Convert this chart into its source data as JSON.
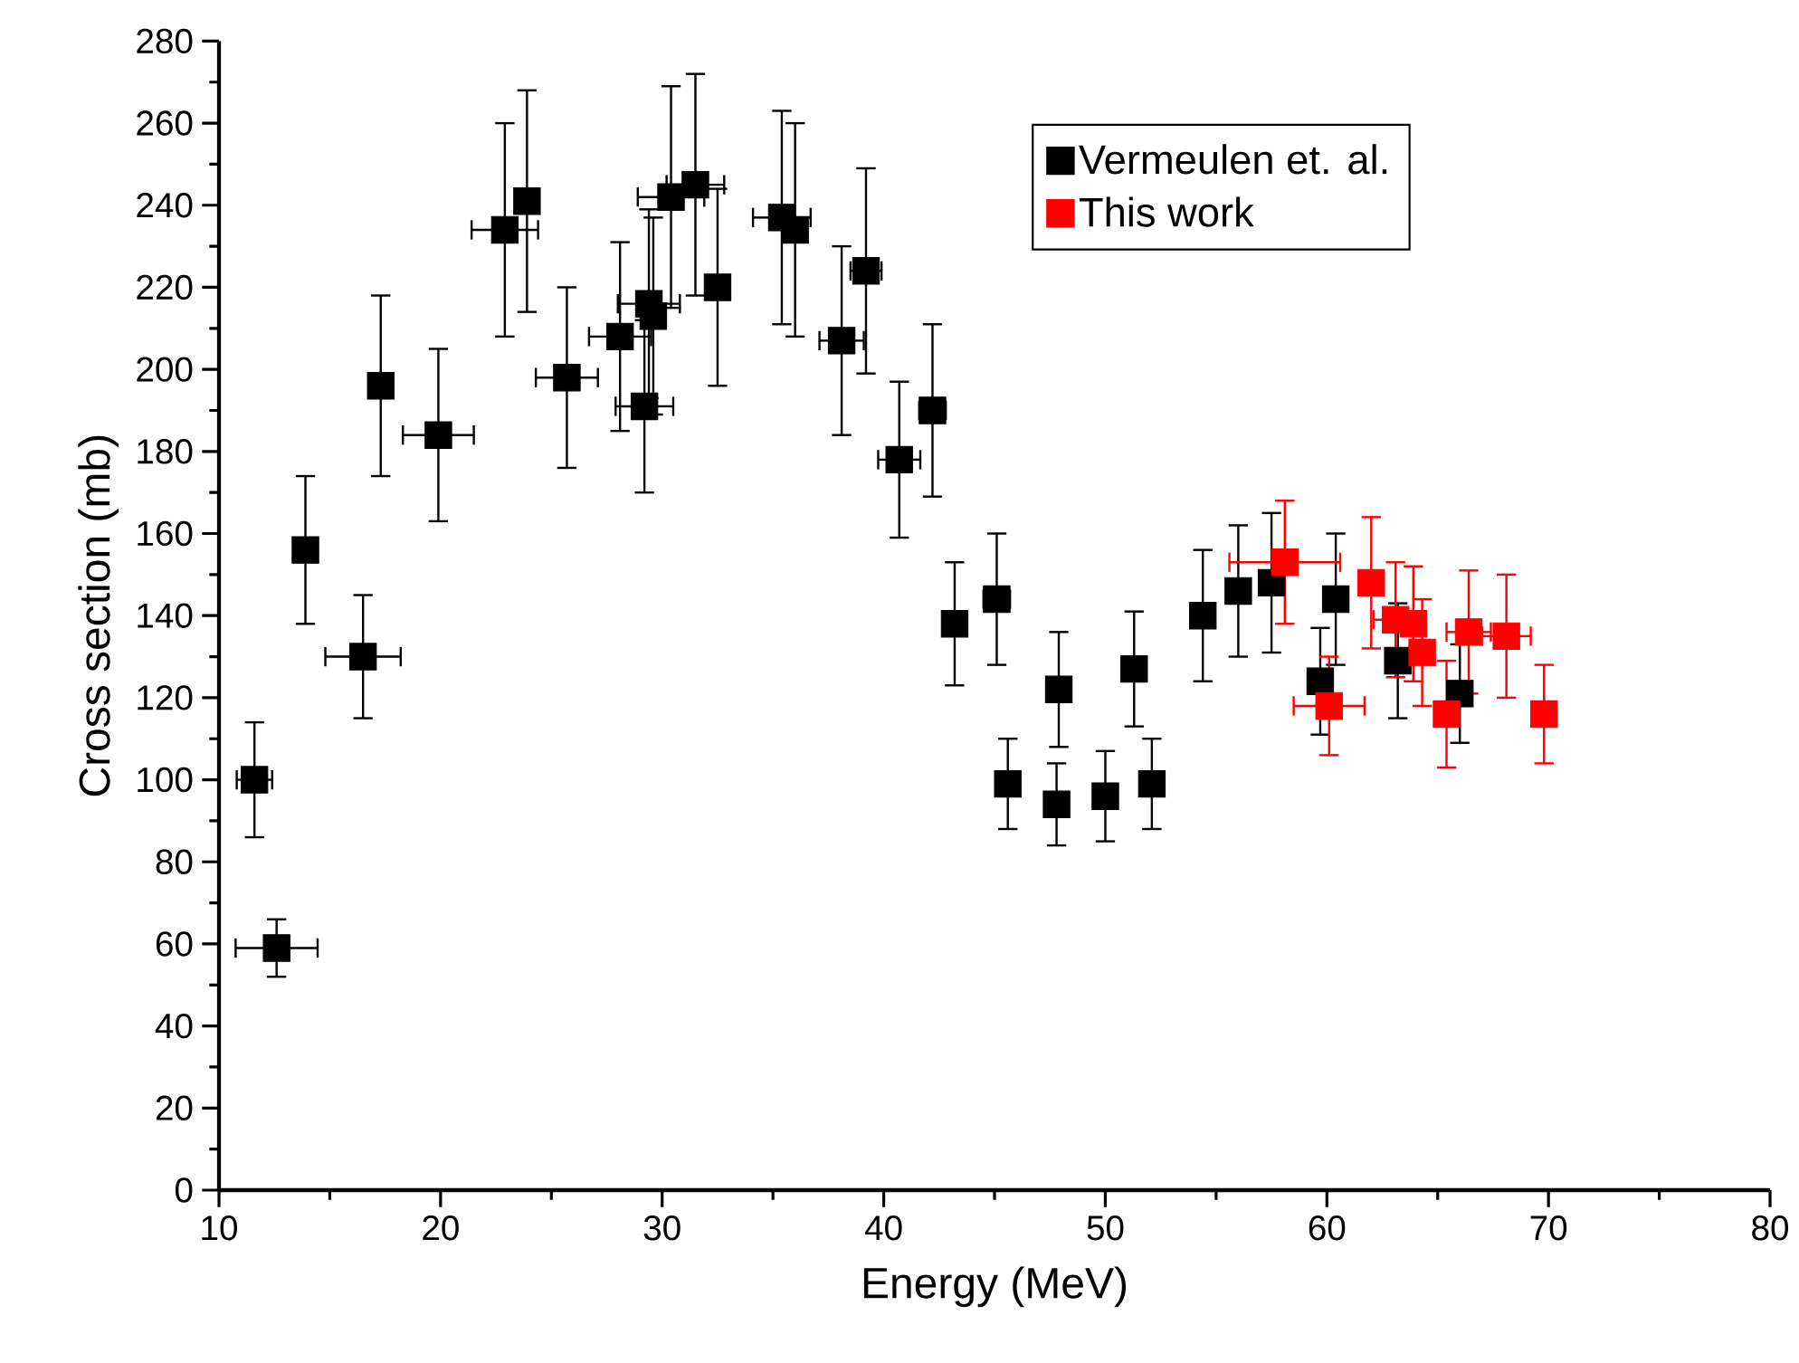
{
  "chart_data": {
    "type": "scatter",
    "xlabel": "Energy (MeV)",
    "ylabel": "Cross section (mb)",
    "xlim": [
      10,
      80
    ],
    "ylim": [
      0,
      280
    ],
    "xticks": [
      10,
      20,
      30,
      40,
      50,
      60,
      70,
      80
    ],
    "yticks": [
      0,
      20,
      40,
      60,
      80,
      100,
      120,
      140,
      160,
      180,
      200,
      220,
      240,
      260,
      280
    ],
    "marker": "square",
    "legend": "top right",
    "grid": false,
    "series": [
      {
        "name": "Vermeulen et. al.",
        "color": "#000000",
        "x": [
          11.6,
          12.6,
          13.9,
          16.5,
          17.3,
          19.9,
          22.9,
          23.9,
          25.7,
          28.1,
          29.2,
          29.4,
          29.6,
          30.4,
          31.5,
          32.5,
          35.4,
          36.0,
          38.1,
          39.2,
          40.7,
          42.2,
          43.2,
          45.1,
          45.6,
          47.9,
          47.8,
          50.0,
          51.3,
          52.1,
          54.4,
          56.0,
          57.5,
          60.4,
          59.7,
          63.2,
          66.0
        ],
        "values": [
          100,
          59,
          156,
          130,
          196,
          184,
          234,
          241,
          198,
          208,
          191,
          216,
          213,
          242,
          245,
          220,
          237,
          234,
          207,
          224,
          178,
          190,
          138,
          144,
          99,
          122,
          94,
          96,
          127,
          99,
          140,
          146,
          148,
          144,
          124,
          129,
          121
        ],
        "errors": [
          14,
          7,
          18,
          15,
          22,
          21,
          26,
          27,
          22,
          23,
          21,
          23,
          24,
          27,
          27,
          24,
          26,
          26,
          23,
          25,
          19,
          21,
          15,
          16,
          11,
          14,
          10,
          11,
          14,
          11,
          16,
          16,
          17,
          16,
          13,
          14,
          12
        ],
        "xerrors": [
          0.8,
          1.85,
          0.3,
          1.7,
          null,
          1.6,
          1.5,
          null,
          1.4,
          1.4,
          1.3,
          1.4,
          null,
          1.5,
          1.3,
          null,
          1.3,
          null,
          1.0,
          0.7,
          0.95,
          0.6,
          0.5,
          0.6,
          0.5,
          0.5,
          0.5,
          0.4,
          0.4,
          null,
          0.5,
          null,
          null,
          null,
          null,
          null,
          null
        ]
      },
      {
        "name": "This work",
        "color": "#ff0000",
        "x": [
          58.1,
          60.1,
          62.0,
          63.1,
          63.9,
          64.3,
          65.4,
          66.4,
          68.1,
          69.8
        ],
        "values": [
          153,
          118,
          148,
          139,
          138,
          131,
          116,
          136,
          135,
          116
        ],
        "errors": [
          15,
          12,
          16,
          14,
          14,
          13,
          13,
          15,
          15,
          12
        ],
        "xerrors": [
          2.5,
          1.6,
          null,
          1.0,
          null,
          null,
          null,
          1.0,
          1.1,
          null
        ]
      }
    ]
  }
}
